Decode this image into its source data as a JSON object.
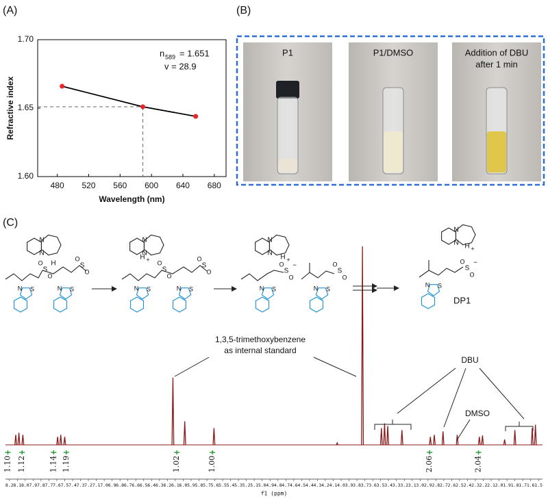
{
  "chart_data": [
    {
      "type": "line",
      "panel_label": "(A)",
      "y_label": "Refractive index",
      "x_label": "Wavelength (nm)",
      "x": [
        486.1,
        589,
        656.3
      ],
      "values": [
        1.666,
        1.651,
        1.644
      ],
      "color": "#000000",
      "marker_color": "#e8262a",
      "xlim": [
        455,
        695
      ],
      "ylim": [
        1.6,
        1.7
      ],
      "xticks": [
        480,
        520,
        560,
        600,
        640,
        680
      ],
      "yticks": [
        {
          "value": 1.6,
          "label": "1.60"
        },
        {
          "value": 1.65,
          "label": "1.65"
        },
        {
          "value": 1.7,
          "label": "1.70"
        }
      ],
      "annotation": {
        "symbol": "n",
        "subscript": "589",
        "text": "= 1.651",
        "abbe": "v = 28.9"
      }
    },
    {
      "type": "nmr",
      "panel_label": "(C)",
      "x_label": "f1 (ppm)",
      "x": [
        8.12,
        8.08,
        8.03,
        7.59,
        7.55,
        7.5,
        6.13,
        5.98,
        5.61,
        4.05,
        3.73,
        3.49,
        3.45,
        3.41,
        3.23,
        2.87,
        2.82,
        2.71,
        2.53,
        2.25,
        2.21,
        1.93,
        1.8,
        1.58,
        1.54
      ],
      "values": [
        15,
        18,
        15,
        12,
        15,
        12,
        100,
        35,
        25,
        3,
        295,
        25,
        32,
        28,
        22,
        12,
        15,
        20,
        15,
        12,
        14,
        8,
        22,
        25,
        30
      ],
      "color": "#8b1a1a",
      "xlim": [
        8.25,
        1.45
      ],
      "ylim": [
        0,
        300
      ],
      "xticks": [
        8.2,
        8.1,
        {
          "value": 8,
          "label": "8.0"
        },
        7.9,
        7.8,
        7.7,
        7.6,
        7.5,
        7.4,
        7.3,
        7.2,
        7.1,
        {
          "value": 7,
          "label": "7.0"
        },
        6.9,
        6.8,
        6.7,
        6.6,
        6.5,
        6.4,
        6.3,
        6.2,
        6.1,
        {
          "value": 6,
          "label": "6.0"
        },
        5.9,
        5.8,
        5.7,
        5.6,
        5.5,
        5.4,
        5.3,
        5.2,
        5.1,
        {
          "value": 5,
          "label": "5.0"
        },
        4.9,
        4.8,
        4.7,
        4.6,
        4.5,
        4.4,
        4.3,
        4.2,
        4.1,
        {
          "value": 4,
          "label": "4.0"
        },
        3.9,
        3.8,
        3.7,
        3.6,
        3.5,
        3.4,
        3.3,
        3.2,
        3.1,
        {
          "value": 3,
          "label": "3.0"
        },
        2.9,
        2.8,
        2.7,
        2.6,
        2.5,
        2.4,
        2.3,
        2.2,
        2.1,
        {
          "value": 2,
          "label": "2.0"
        },
        1.9,
        1.8,
        1.7,
        1.6,
        1.5
      ],
      "integrals": {
        "x": [
          8.22,
          8.04,
          7.64,
          7.48,
          6.08,
          5.63,
          2.88,
          2.26
        ],
        "labels": [
          "1.10",
          "1.12",
          "1.14",
          "1.19",
          "1.02",
          "1.00",
          "2.06",
          "2.04"
        ]
      },
      "annotations": {
        "standard": [
          "1,3,5-trimethoxybenzene",
          "as internal standard"
        ],
        "dbu": "DBU",
        "dmso": "DMSO"
      }
    }
  ],
  "panel_b": {
    "label": "(B)",
    "photos": [
      {
        "caption": [
          "P1"
        ]
      },
      {
        "caption": [
          "P1/DMSO"
        ]
      },
      {
        "caption": [
          "Addition of DBU",
          "after 1 min"
        ]
      }
    ]
  },
  "scheme": {
    "n": "N",
    "h": "H",
    "plus": "+",
    "s": "S",
    "o": "O",
    "minus": "−",
    "product": "DP1"
  }
}
